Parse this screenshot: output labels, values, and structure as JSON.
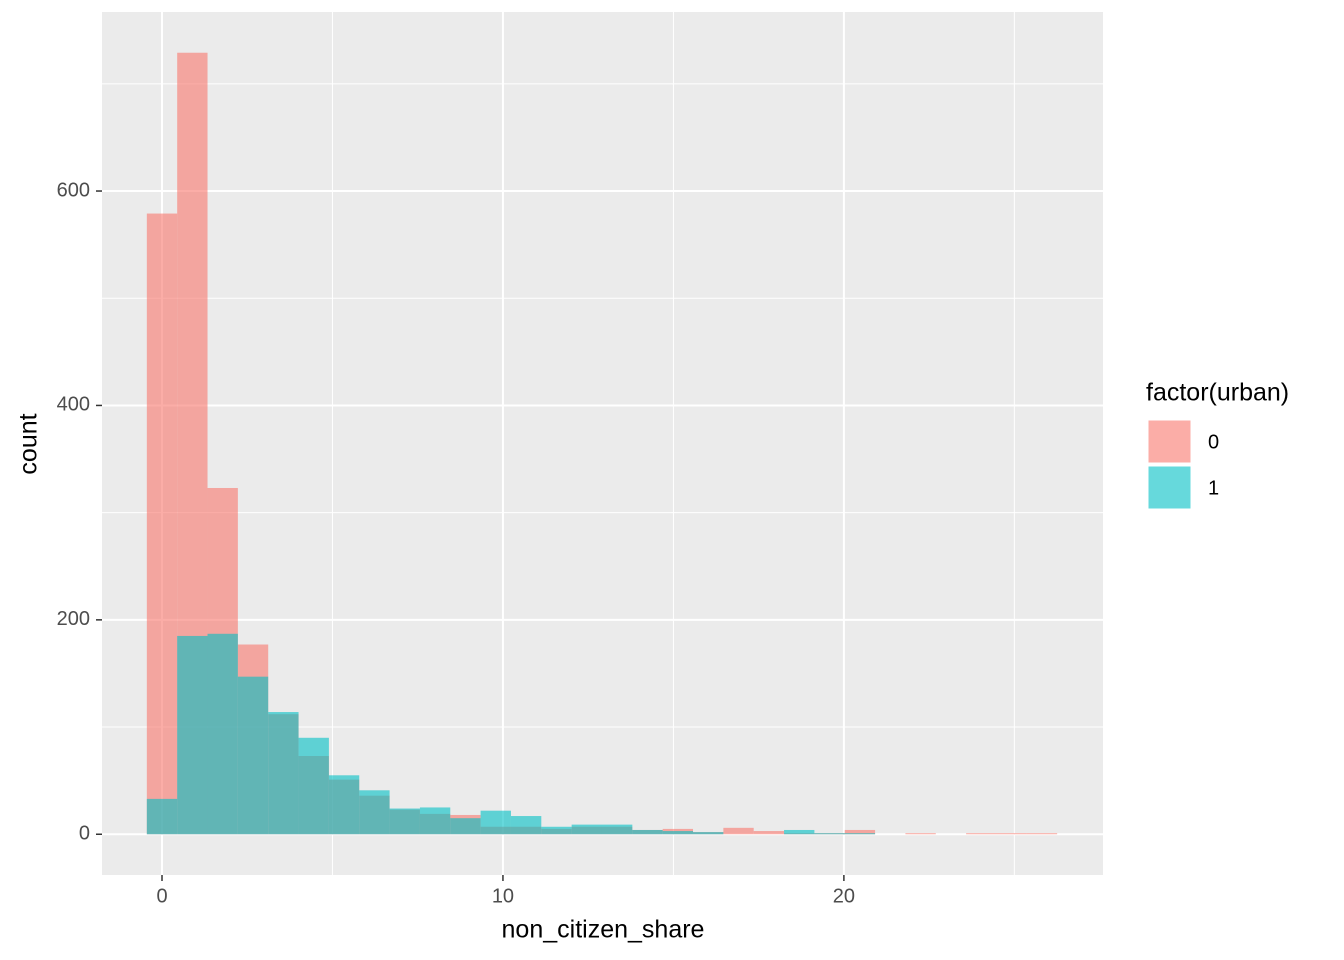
{
  "chart_data": {
    "type": "histogram",
    "xlabel": "non_citizen_share",
    "ylabel": "count",
    "legend_title": "factor(urban)",
    "legend_position": "right",
    "bins": [
      -0.445,
      0.445,
      1.335,
      2.225,
      3.115,
      4.005,
      4.895,
      5.785,
      6.675,
      7.565,
      8.455,
      9.345,
      10.235,
      11.125,
      12.015,
      12.905,
      13.795,
      14.685,
      15.575,
      16.465,
      17.355,
      18.245,
      19.135,
      20.025,
      20.915,
      21.805,
      22.695,
      23.585,
      24.475,
      25.365,
      26.255
    ],
    "series": [
      {
        "name": "0",
        "color": "#F8766D",
        "opacity": 0.6,
        "values": [
          579,
          729,
          323,
          177,
          112,
          73,
          51,
          36,
          23,
          19,
          18,
          7,
          7,
          5,
          7,
          7,
          4,
          5,
          2,
          6,
          3,
          1,
          1,
          4,
          0,
          1,
          0,
          1,
          1,
          1
        ]
      },
      {
        "name": "1",
        "color": "#00BFC4",
        "opacity": 0.6,
        "values": [
          33,
          185,
          187,
          147,
          114,
          90,
          55,
          41,
          24,
          25,
          15,
          22,
          17,
          7,
          9,
          9,
          4,
          3,
          2,
          0,
          0,
          4,
          1,
          1,
          0,
          0,
          0,
          0,
          0,
          0
        ]
      }
    ],
    "xlim": [
      -1.76,
      27.6
    ],
    "ylim": [
      -38,
      767
    ],
    "xticks": [
      0,
      10,
      20
    ],
    "yticks": [
      0,
      200,
      400,
      600
    ],
    "minor_xticks": [
      5,
      15,
      25
    ],
    "minor_yticks": [
      100,
      300,
      500,
      700
    ],
    "grid": true
  }
}
